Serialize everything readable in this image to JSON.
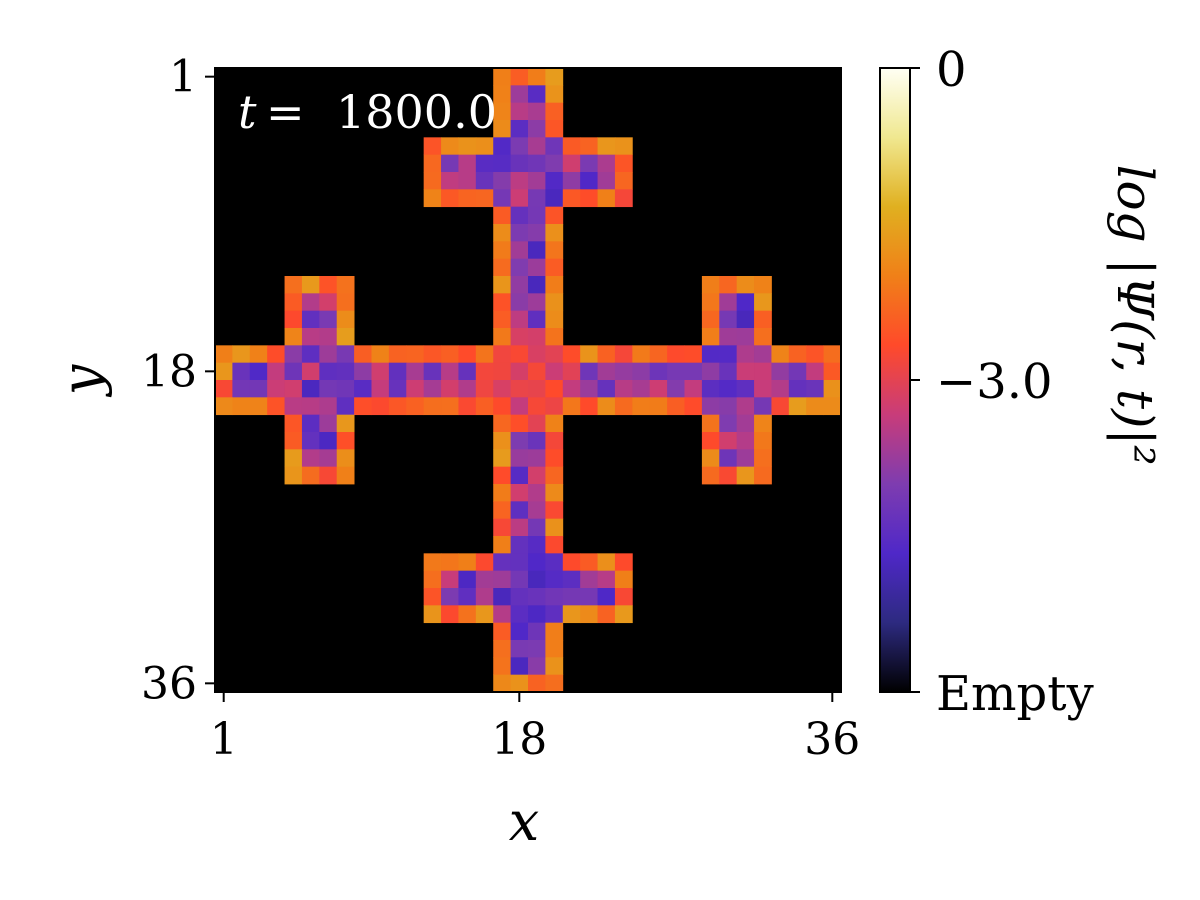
{
  "chart_data": {
    "type": "heatmap",
    "title": "",
    "annotation": {
      "lhs": "t",
      "value": "1800.0"
    },
    "xlabel": "x",
    "ylabel": "y",
    "grid_size": [
      36,
      36
    ],
    "xlim": [
      1,
      36
    ],
    "ylim": [
      36,
      1
    ],
    "x_ticks": [
      "1",
      "18",
      "36"
    ],
    "y_ticks": [
      "1",
      "18",
      "36"
    ],
    "background_color": "#000000",
    "colorbar": {
      "label": "log |Ψ(r, t)|²",
      "range": [
        -6.0,
        0.0
      ],
      "tick_labels": [
        "0",
        "−3.0",
        "Empty"
      ],
      "tick_values": [
        0.0,
        -3.0,
        -6.0
      ],
      "colors": [
        "#000000",
        "#2d2a80",
        "#4f28c8",
        "#7e3cb0",
        "#c83c7a",
        "#ff4a2a",
        "#f08018",
        "#e0b020",
        "#f0e890",
        "#fffff4"
      ]
    },
    "shape": "cross of crosses (fractal cross lattice), occupied sites only",
    "regions": [
      {
        "name": "central-vertical-bar",
        "x": [
          17,
          20
        ],
        "y": [
          1,
          36
        ]
      },
      {
        "name": "central-horizontal-bar",
        "x": [
          1,
          36
        ],
        "y": [
          17,
          20
        ]
      },
      {
        "name": "top-crossbar",
        "x": [
          13,
          24
        ],
        "y": [
          5,
          8
        ]
      },
      {
        "name": "bottom-crossbar",
        "x": [
          13,
          24
        ],
        "y": [
          29,
          32
        ]
      },
      {
        "name": "left-arm-crossbar",
        "x": [
          5,
          8
        ],
        "y": [
          13,
          24
        ]
      },
      {
        "name": "right-arm-crossbar",
        "x": [
          29,
          32
        ],
        "y": [
          13,
          24
        ]
      }
    ],
    "edge_value_approx": -2.2,
    "interior_value_approx": -4.0,
    "center_value_approx": -3.0
  }
}
